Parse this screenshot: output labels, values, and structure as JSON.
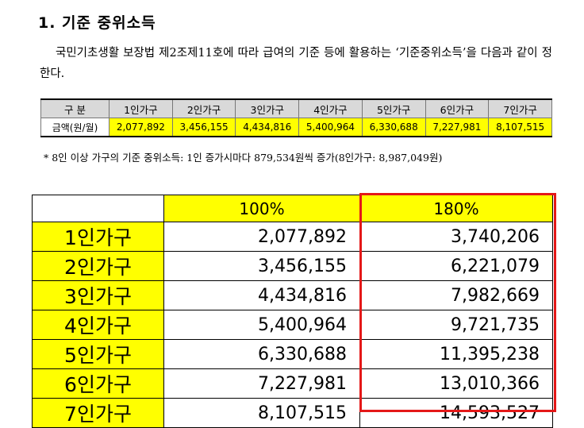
{
  "doc": {
    "title": "1. 기준 중위소득",
    "paragraph": "국민기초생활 보장법 제2조제11호에 따라 급여의 기준 등에 활용하는 ‘기준중위소득’을 다음과 같이 정한다.",
    "note": "* 8인 이상 가구의 기준 중위소득: 1인 증가시마다 879,534원씩 증가(8인가구: 8,987,049원)"
  },
  "table1": {
    "corner": "구 분",
    "headers": [
      "1인가구",
      "2인가구",
      "3인가구",
      "4인가구",
      "5인가구",
      "6인가구",
      "7인가구"
    ],
    "row_label": "금액(원/월)",
    "values": [
      "2,077,892",
      "3,456,155",
      "4,434,816",
      "5,400,964",
      "6,330,688",
      "7,227,981",
      "8,107,515"
    ]
  },
  "table2": {
    "col_headers": [
      "100%",
      "180%"
    ],
    "rows": [
      {
        "label": "1인가구",
        "v100": "2,077,892",
        "v180": "3,740,206"
      },
      {
        "label": "2인가구",
        "v100": "3,456,155",
        "v180": "6,221,079"
      },
      {
        "label": "3인가구",
        "v100": "4,434,816",
        "v180": "7,982,669"
      },
      {
        "label": "4인가구",
        "v100": "5,400,964",
        "v180": "9,721,735"
      },
      {
        "label": "5인가구",
        "v100": "6,330,688",
        "v180": "11,395,238"
      },
      {
        "label": "6인가구",
        "v100": "7,227,981",
        "v180": "13,010,366"
      },
      {
        "label": "7인가구",
        "v100": "8,107,515",
        "v180": "14,593,527"
      }
    ]
  },
  "colors": {
    "highlight": "#ffff00",
    "annotation_box": "#e41818",
    "header_gray": "#d9d9d9"
  }
}
